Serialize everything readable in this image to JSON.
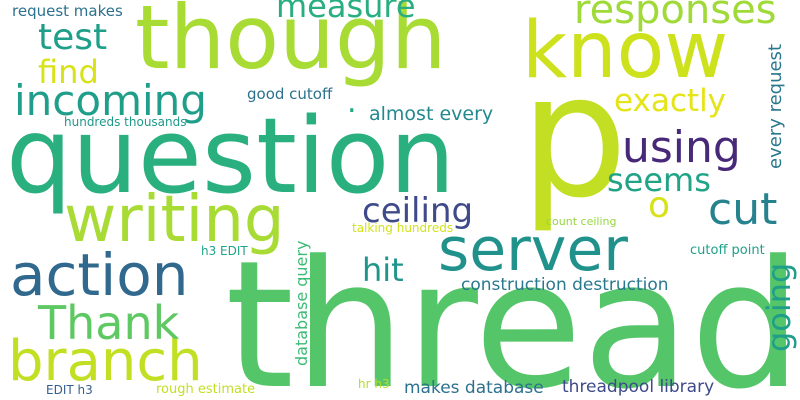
{
  "words": [
    {
      "id": "thread",
      "text": "thread",
      "color": "#54c568"
    },
    {
      "id": "p",
      "text": "p",
      "color": "#c2df23"
    },
    {
      "id": "question",
      "text": "question",
      "color": "#2ab07f"
    },
    {
      "id": "though",
      "text": "though",
      "color": "#a8db34"
    },
    {
      "id": "know",
      "text": "know",
      "color": "#cde11d"
    },
    {
      "id": "writing",
      "text": "writing",
      "color": "#a8db34"
    },
    {
      "id": "server",
      "text": "server",
      "color": "#21918c"
    },
    {
      "id": "action",
      "text": "action",
      "color": "#31688e"
    },
    {
      "id": "branch",
      "text": "branch",
      "color": "#c2df23"
    },
    {
      "id": "thank",
      "text": "Thank",
      "color": "#5ec962"
    },
    {
      "id": "incoming",
      "text": "incoming",
      "color": "#1f9e89"
    },
    {
      "id": "using",
      "text": "using",
      "color": "#482878"
    },
    {
      "id": "cut",
      "text": "cut",
      "color": "#26828e"
    },
    {
      "id": "responses",
      "text": "responses",
      "color": "#a0da39"
    },
    {
      "id": "measure",
      "text": "measure",
      "color": "#28ae80"
    },
    {
      "id": "test",
      "text": "test",
      "color": "#1f9e89"
    },
    {
      "id": "find",
      "text": "find",
      "color": "#d8e219"
    },
    {
      "id": "exactly",
      "text": "exactly",
      "color": "#e5e419"
    },
    {
      "id": "seems",
      "text": "seems",
      "color": "#20a386"
    },
    {
      "id": "ceiling",
      "text": "ceiling",
      "color": "#3e4a89"
    },
    {
      "id": "o",
      "text": "o",
      "color": "#d8e219"
    },
    {
      "id": "hit",
      "text": "hit",
      "color": "#1f968b"
    },
    {
      "id": "going",
      "text": "going",
      "color": "#1f9e89"
    },
    {
      "id": "every-request",
      "text": "every request",
      "color": "#2a788e"
    },
    {
      "id": "almost-every",
      "text": "almost every",
      "color": "#23898e"
    },
    {
      "id": "good-cutoff",
      "text": "good cutoff",
      "color": "#2c718e"
    },
    {
      "id": "request-makes",
      "text": "request makes",
      "color": "#2c718e"
    },
    {
      "id": "hundreds-thousands",
      "text": "hundreds thousands",
      "color": "#1f988b"
    },
    {
      "id": "construction-destruction",
      "text": "construction destruction",
      "color": "#2a788e"
    },
    {
      "id": "database-query",
      "text": "database query",
      "color": "#3bbb75"
    },
    {
      "id": "makes-database",
      "text": "makes database",
      "color": "#2d718e"
    },
    {
      "id": "threadpool-library",
      "text": "threadpool library",
      "color": "#3e4a89"
    },
    {
      "id": "cutoff-point",
      "text": "cutoff point",
      "color": "#1fa088"
    },
    {
      "id": "count-ceiling",
      "text": "count ceiling",
      "color": "#95d840"
    },
    {
      "id": "talking-hundreds",
      "text": "talking hundreds",
      "color": "#d2e21b"
    },
    {
      "id": "h3-edit",
      "text": "h3 EDIT",
      "color": "#20a386"
    },
    {
      "id": "edit-h3",
      "text": "EDIT h3",
      "color": "#355f8d"
    },
    {
      "id": "rough-estimate",
      "text": "rough estimate",
      "color": "#c2df23"
    },
    {
      "id": "hr-h3",
      "text": "hr h3",
      "color": "#b5de2b"
    },
    {
      "id": "dot",
      "text": ".",
      "color": "#22a785"
    }
  ]
}
